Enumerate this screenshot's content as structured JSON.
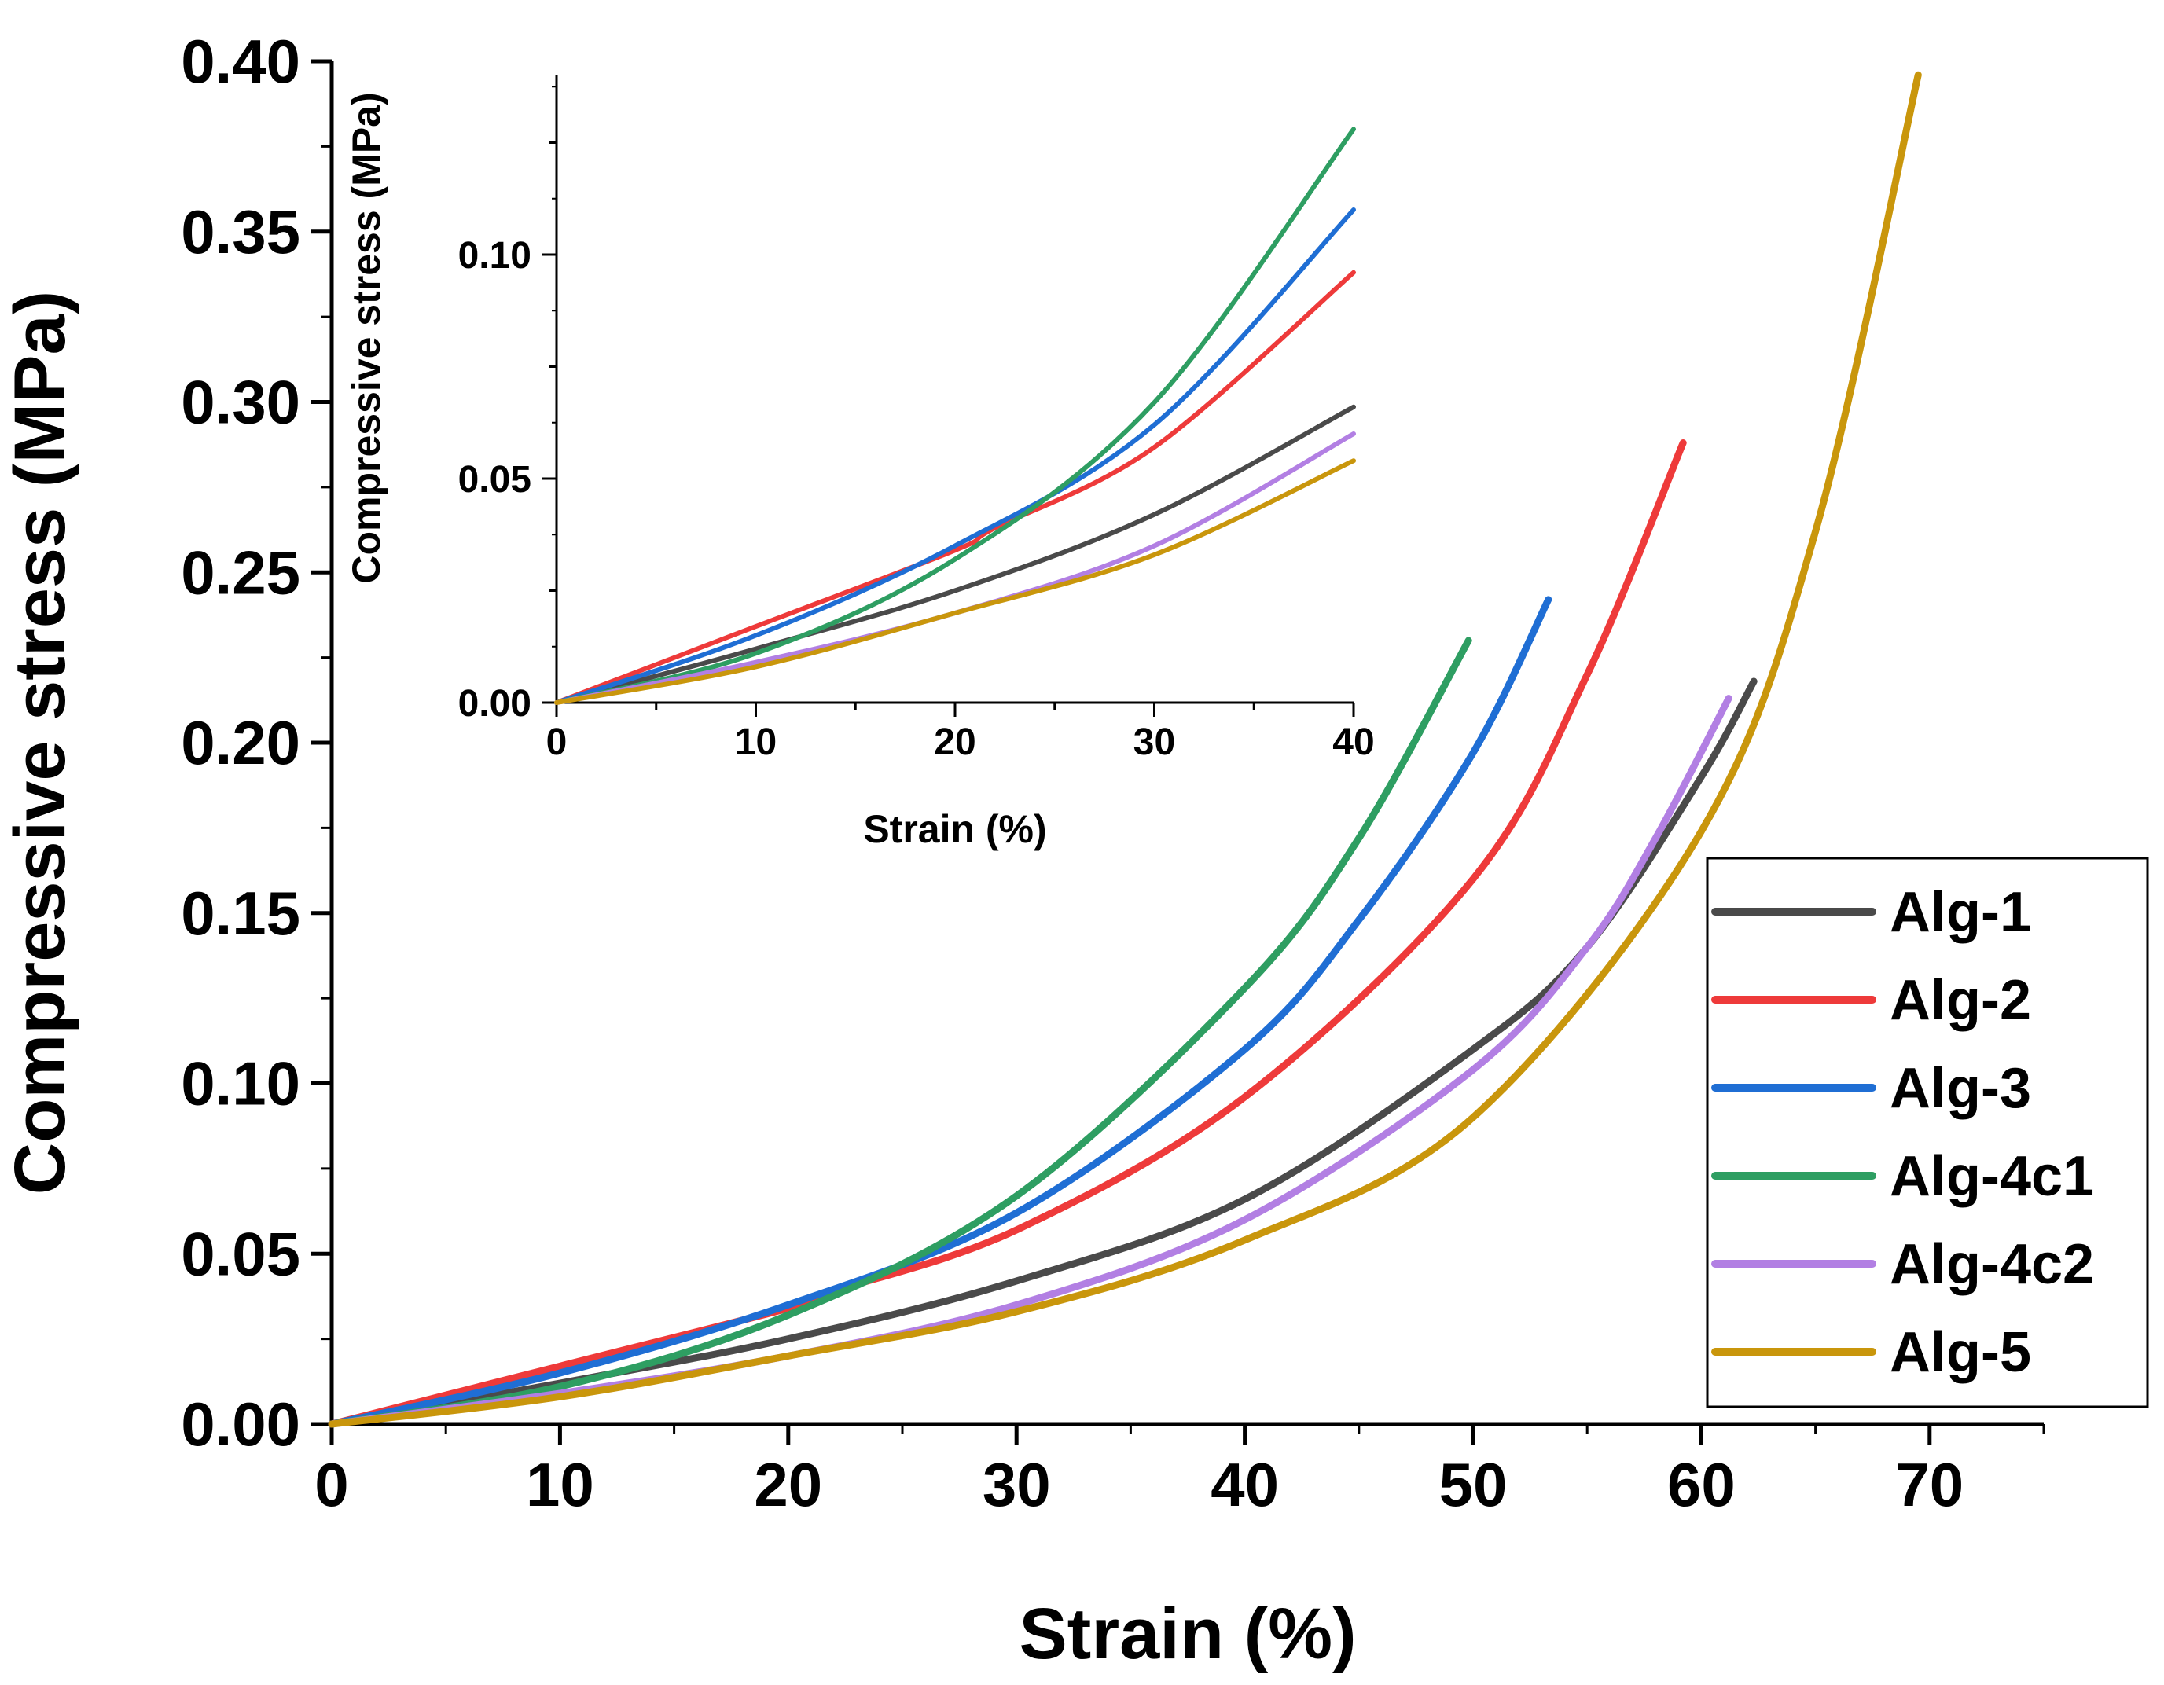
{
  "chart_data": [
    {
      "id": "main",
      "type": "line",
      "xlabel": "Strain (%)",
      "ylabel": "Compressive stress (MPa)",
      "xlim": [
        0,
        75
      ],
      "ylim": [
        0,
        0.4
      ],
      "xticks": [
        "0",
        "10",
        "20",
        "30",
        "40",
        "50",
        "60",
        "70"
      ],
      "yticks": [
        "0.00",
        "0.05",
        "0.10",
        "0.15",
        "0.20",
        "0.25",
        "0.30",
        "0.35",
        "0.40"
      ],
      "legend_position": "bottom-right",
      "series": [
        {
          "name": "Alg-1",
          "color": "#4a4a4a",
          "x": [
            0,
            10,
            20,
            30,
            40,
            50,
            55,
            60,
            62.3
          ],
          "y": [
            0,
            0.012,
            0.025,
            0.042,
            0.066,
            0.11,
            0.14,
            0.19,
            0.218
          ]
        },
        {
          "name": "Alg-2",
          "color": "#ee3a3a",
          "x": [
            0,
            10,
            20,
            22,
            30,
            40,
            50,
            55,
            59.2
          ],
          "y": [
            0,
            0.017,
            0.034,
            0.039,
            0.057,
            0.096,
            0.16,
            0.22,
            0.288
          ]
        },
        {
          "name": "Alg-3",
          "color": "#1f6ed4",
          "x": [
            0,
            10,
            20,
            30,
            40,
            45,
            50,
            53.3
          ],
          "y": [
            0,
            0.015,
            0.035,
            0.062,
            0.11,
            0.148,
            0.197,
            0.242
          ]
        },
        {
          "name": "Alg-4c1",
          "color": "#2e9e62",
          "x": [
            0,
            10,
            20,
            30,
            40,
            45,
            49.8
          ],
          "y": [
            0,
            0.011,
            0.032,
            0.067,
            0.128,
            0.172,
            0.23
          ]
        },
        {
          "name": "Alg-4c2",
          "color": "#b27fe3",
          "x": [
            0,
            10,
            20,
            30,
            40,
            50,
            55,
            58,
            61.2
          ],
          "y": [
            0,
            0.009,
            0.02,
            0.035,
            0.06,
            0.104,
            0.14,
            0.172,
            0.213
          ]
        },
        {
          "name": "Alg-5",
          "color": "#c9960c",
          "x": [
            0,
            10,
            20,
            30,
            40,
            50,
            60,
            65,
            69.5
          ],
          "y": [
            0,
            0.008,
            0.02,
            0.033,
            0.054,
            0.09,
            0.174,
            0.262,
            0.396
          ]
        }
      ]
    },
    {
      "id": "inset",
      "type": "line",
      "xlabel": "Strain (%)",
      "ylabel": "Compressive stress (MPa)",
      "xlim": [
        0,
        40
      ],
      "ylim": [
        0,
        0.14
      ],
      "xticks": [
        "0",
        "10",
        "20",
        "30",
        "40"
      ],
      "yticks": [
        "0.00",
        "0.05",
        "0.10"
      ],
      "series_ref": "main",
      "x_max": 40
    }
  ]
}
